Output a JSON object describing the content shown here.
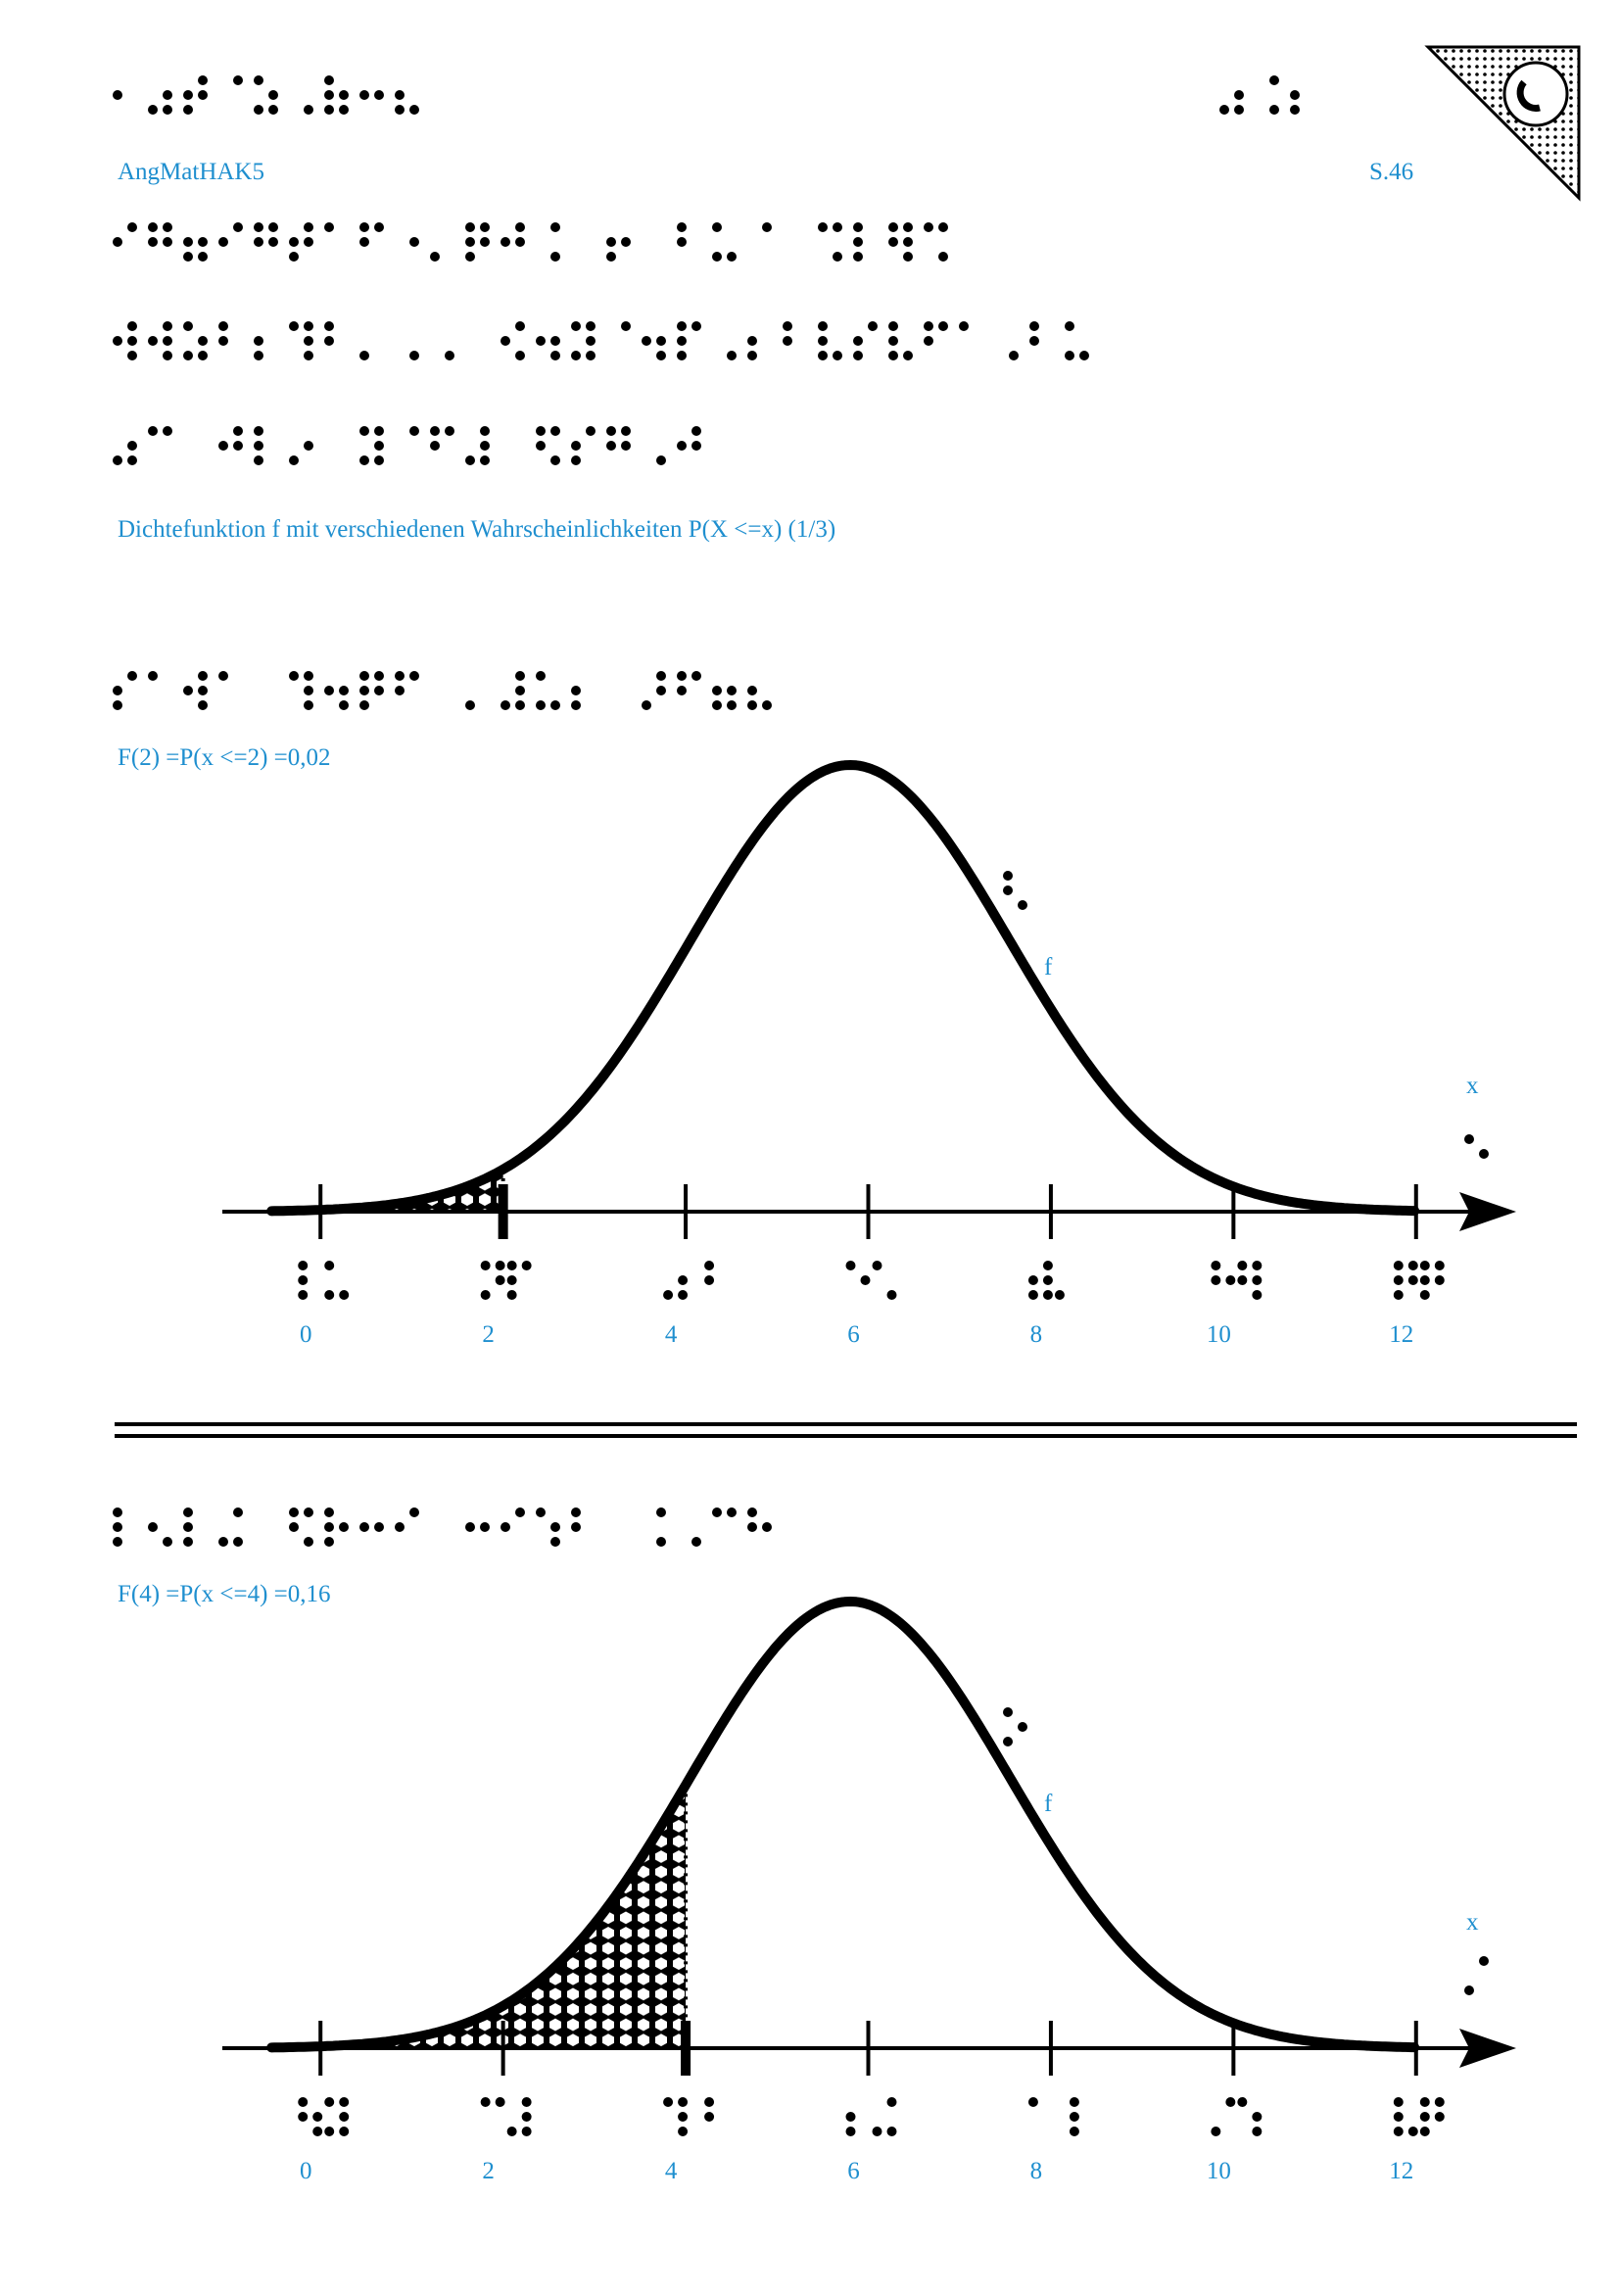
{
  "header": {
    "title": "AngMatHAK5",
    "page": "S.46"
  },
  "caption": "Dichtefunktion f mit verschiedenen Wahrscheinlichkeiten P(X <=x) (1/3)",
  "charts": [
    {
      "type": "line",
      "title": "F(2) =P(x <=2) =0,02",
      "xlim": [
        -1,
        13
      ],
      "xticks": [
        0,
        2,
        4,
        6,
        8,
        10,
        12
      ],
      "shade_to": 2,
      "curve_label": "f",
      "axis_label": "x"
    },
    {
      "type": "line",
      "title": "F(4) =P(x <=4) =0,16",
      "xlim": [
        -1,
        13
      ],
      "xticks": [
        0,
        2,
        4,
        6,
        8,
        10,
        12
      ],
      "shade_to": 4,
      "curve_label": "f",
      "axis_label": "x"
    }
  ]
}
